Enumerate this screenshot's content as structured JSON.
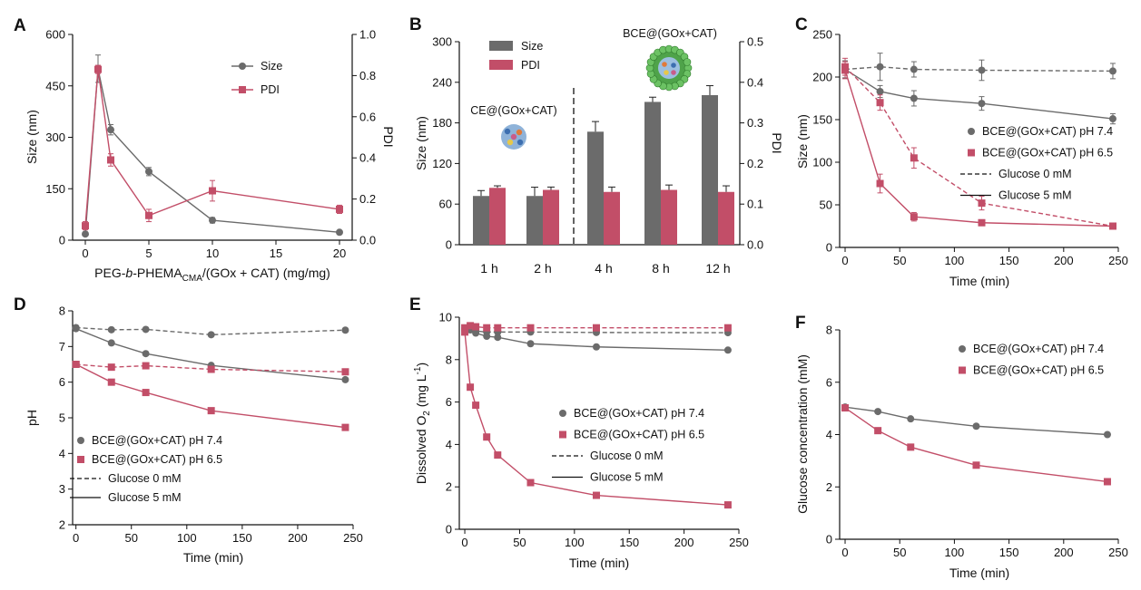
{
  "colors": {
    "gray": "#6b6b6b",
    "red": "#c24e68",
    "bar_gray": "#6b6b6b",
    "bar_red": "#c24e68"
  },
  "chart_data": [
    {
      "panel": "A",
      "type": "line",
      "xlabel_parts": [
        "PEG-",
        "b",
        "-PHEMA",
        "CMA",
        "/(GOx + CAT) (mg/mg)"
      ],
      "ylabel": "Size (nm)",
      "y2label": "PDI",
      "xlim": [
        -1,
        21
      ],
      "xticks": [
        0,
        5,
        10,
        15,
        20
      ],
      "ylim": [
        0,
        600
      ],
      "yticks": [
        0,
        150,
        300,
        450,
        600
      ],
      "y2lim": [
        0,
        1.0
      ],
      "y2ticks": [
        "0.0",
        "0.2",
        "0.4",
        "0.6",
        "0.8",
        "1.0"
      ],
      "series": [
        {
          "name": "Size",
          "axis": "left",
          "marker": "circle",
          "color": "gray",
          "x": [
            0,
            1,
            2,
            5,
            10,
            20
          ],
          "y": [
            18,
            500,
            322,
            200,
            58,
            23
          ],
          "err": [
            0,
            40,
            15,
            12,
            8,
            0
          ]
        },
        {
          "name": "PDI",
          "axis": "right",
          "marker": "square",
          "color": "red",
          "x": [
            0,
            1,
            2,
            5,
            10,
            20
          ],
          "y": [
            0.07,
            0.83,
            0.39,
            0.12,
            0.24,
            0.15
          ],
          "err": [
            0.02,
            0.02,
            0.03,
            0.03,
            0.05,
            0.02
          ]
        }
      ],
      "legend": [
        {
          "label": "Size",
          "marker": "circle",
          "color": "gray"
        },
        {
          "label": "PDI",
          "marker": "square",
          "color": "red"
        }
      ]
    },
    {
      "panel": "B",
      "type": "bar",
      "categories": [
        "1 h",
        "2 h",
        "4 h",
        "8 h",
        "12 h"
      ],
      "ylabel": "Size (nm)",
      "y2label": "PDI",
      "ylim": [
        0,
        300
      ],
      "yticks": [
        0,
        60,
        120,
        180,
        240,
        300
      ],
      "y2lim": [
        0,
        0.5
      ],
      "y2ticks": [
        "0.0",
        "0.1",
        "0.2",
        "0.3",
        "0.4",
        "0.5"
      ],
      "series": [
        {
          "name": "Size",
          "axis": "left",
          "color": "bar_gray",
          "values": [
            72,
            72,
            167,
            211,
            221
          ],
          "err": [
            8,
            13,
            15,
            7,
            14
          ]
        },
        {
          "name": "PDI",
          "axis": "right",
          "color": "bar_red",
          "values": [
            0.14,
            0.135,
            0.13,
            0.135,
            0.13
          ],
          "err": [
            0.005,
            0.007,
            0.012,
            0.012,
            0.015
          ]
        }
      ],
      "annotations": [
        "CE@(GOx+CAT)",
        "BCE@(GOx+CAT)"
      ],
      "legend": [
        {
          "label": "Size",
          "color": "bar_gray"
        },
        {
          "label": "PDI",
          "color": "bar_red"
        }
      ]
    },
    {
      "panel": "C",
      "type": "line",
      "xlabel": "Time (min)",
      "ylabel": "Size (nm)",
      "xlim": [
        -5,
        250
      ],
      "xticks": [
        0,
        50,
        100,
        150,
        200,
        250
      ],
      "ylim": [
        0,
        250
      ],
      "yticks": [
        0,
        50,
        100,
        150,
        200,
        250
      ],
      "series": [
        {
          "marker": "circle",
          "color": "gray",
          "dash": true,
          "x": [
            0,
            32,
            63,
            125,
            245
          ],
          "y": [
            209,
            212,
            209,
            208,
            207
          ],
          "err": [
            10,
            16,
            9,
            12,
            9
          ]
        },
        {
          "marker": "circle",
          "color": "gray",
          "dash": false,
          "x": [
            0,
            32,
            63,
            125,
            245
          ],
          "y": [
            209,
            183,
            175,
            169,
            151
          ],
          "err": [
            10,
            7,
            9,
            8,
            6
          ]
        },
        {
          "marker": "square",
          "color": "red",
          "dash": true,
          "x": [
            0,
            32,
            63,
            125,
            245
          ],
          "y": [
            212,
            170,
            105,
            52,
            25
          ],
          "err": [
            10,
            9,
            12,
            8,
            2
          ]
        },
        {
          "marker": "square",
          "color": "red",
          "dash": false,
          "x": [
            0,
            32,
            63,
            125,
            245
          ],
          "y": [
            208,
            75,
            36,
            29,
            25
          ],
          "err": [
            10,
            11,
            5,
            3,
            2
          ]
        }
      ],
      "legend": [
        {
          "label": "BCE@(GOx+CAT) pH 7.4",
          "marker": "circle",
          "color": "gray"
        },
        {
          "label": "BCE@(GOx+CAT) pH 6.5",
          "marker": "square",
          "color": "red"
        },
        {
          "label": "Glucose 0 mM",
          "line": "dash"
        },
        {
          "label": "Glucose 5 mM",
          "line": "solid"
        }
      ]
    },
    {
      "panel": "D",
      "type": "line",
      "xlabel": "Time (min)",
      "ylabel": "pH",
      "xlim": [
        -3,
        250
      ],
      "xticks": [
        0,
        50,
        100,
        150,
        200,
        250
      ],
      "ylim": [
        2,
        8
      ],
      "yticks": [
        2,
        3,
        4,
        5,
        6,
        7,
        8
      ],
      "series": [
        {
          "marker": "circle",
          "color": "gray",
          "dash": true,
          "x": [
            0,
            32,
            63,
            122,
            243
          ],
          "y": [
            7.53,
            7.47,
            7.48,
            7.33,
            7.46
          ]
        },
        {
          "marker": "circle",
          "color": "gray",
          "dash": false,
          "x": [
            0,
            32,
            63,
            122,
            243
          ],
          "y": [
            7.5,
            7.1,
            6.8,
            6.47,
            6.07
          ]
        },
        {
          "marker": "square",
          "color": "red",
          "dash": true,
          "x": [
            0,
            32,
            63,
            122,
            243
          ],
          "y": [
            6.5,
            6.42,
            6.46,
            6.36,
            6.29
          ]
        },
        {
          "marker": "square",
          "color": "red",
          "dash": false,
          "x": [
            0,
            32,
            63,
            122,
            243
          ],
          "y": [
            6.5,
            6.0,
            5.71,
            5.2,
            4.73
          ]
        }
      ],
      "legend": [
        {
          "label": "BCE@(GOx+CAT) pH 7.4",
          "marker": "circle",
          "color": "gray"
        },
        {
          "label": "BCE@(GOx+CAT) pH 6.5",
          "marker": "square",
          "color": "red"
        },
        {
          "label": "Glucose 0 mM",
          "line": "dash"
        },
        {
          "label": "Glucose 5 mM",
          "line": "solid"
        }
      ]
    },
    {
      "panel": "E",
      "type": "line",
      "xlabel": "Time (min)",
      "ylabel": "Dissolved O2 (mg L-1)",
      "ylabel_parts": [
        "Dissolved O",
        "2",
        " (mg L",
        "-1",
        ")"
      ],
      "xlim": [
        -5,
        250
      ],
      "xticks": [
        0,
        50,
        100,
        150,
        200,
        250
      ],
      "ylim": [
        0,
        10
      ],
      "yticks": [
        0,
        2,
        4,
        6,
        8,
        10
      ],
      "series": [
        {
          "marker": "circle",
          "color": "gray",
          "dash": true,
          "x": [
            0,
            5,
            10,
            20,
            30,
            60,
            120,
            240
          ],
          "y": [
            9.45,
            9.4,
            9.35,
            9.3,
            9.3,
            9.3,
            9.28,
            9.27
          ]
        },
        {
          "marker": "circle",
          "color": "gray",
          "dash": false,
          "x": [
            0,
            10,
            20,
            30,
            60,
            120,
            240
          ],
          "y": [
            9.45,
            9.25,
            9.1,
            9.05,
            8.75,
            8.6,
            8.45
          ]
        },
        {
          "marker": "square",
          "color": "red",
          "dash": true,
          "x": [
            0,
            5,
            10,
            20,
            30,
            60,
            120,
            240
          ],
          "y": [
            9.5,
            9.6,
            9.55,
            9.5,
            9.5,
            9.5,
            9.5,
            9.5
          ]
        },
        {
          "marker": "square",
          "color": "red",
          "dash": false,
          "x": [
            0,
            5,
            10,
            20,
            30,
            60,
            120,
            240
          ],
          "y": [
            9.3,
            6.7,
            5.85,
            4.35,
            3.5,
            2.2,
            1.6,
            1.15
          ]
        }
      ],
      "legend": [
        {
          "label": "BCE@(GOx+CAT) pH 7.4",
          "marker": "circle",
          "color": "gray"
        },
        {
          "label": "BCE@(GOx+CAT) pH 6.5",
          "marker": "square",
          "color": "red"
        },
        {
          "label": "Glucose 0 mM",
          "line": "dash"
        },
        {
          "label": "Glucose 5 mM",
          "line": "solid"
        }
      ]
    },
    {
      "panel": "F",
      "type": "line",
      "xlabel": "Time (min)",
      "ylabel": "Glucose concentration (mM)",
      "xlim": [
        -5,
        250
      ],
      "xticks": [
        0,
        50,
        100,
        150,
        200,
        250
      ],
      "ylim": [
        0,
        8
      ],
      "yticks": [
        0,
        2,
        4,
        6,
        8
      ],
      "series": [
        {
          "marker": "circle",
          "color": "gray",
          "dash": false,
          "x": [
            0,
            30,
            60,
            120,
            240
          ],
          "y": [
            5.05,
            4.88,
            4.6,
            4.32,
            4.0
          ]
        },
        {
          "marker": "square",
          "color": "red",
          "dash": false,
          "x": [
            0,
            30,
            60,
            120,
            240
          ],
          "y": [
            5.02,
            4.15,
            3.52,
            2.83,
            2.2
          ]
        }
      ],
      "legend": [
        {
          "label": "BCE@(GOx+CAT) pH 7.4",
          "marker": "circle",
          "color": "gray"
        },
        {
          "label": "BCE@(GOx+CAT) pH 6.5",
          "marker": "square",
          "color": "red"
        }
      ]
    }
  ]
}
